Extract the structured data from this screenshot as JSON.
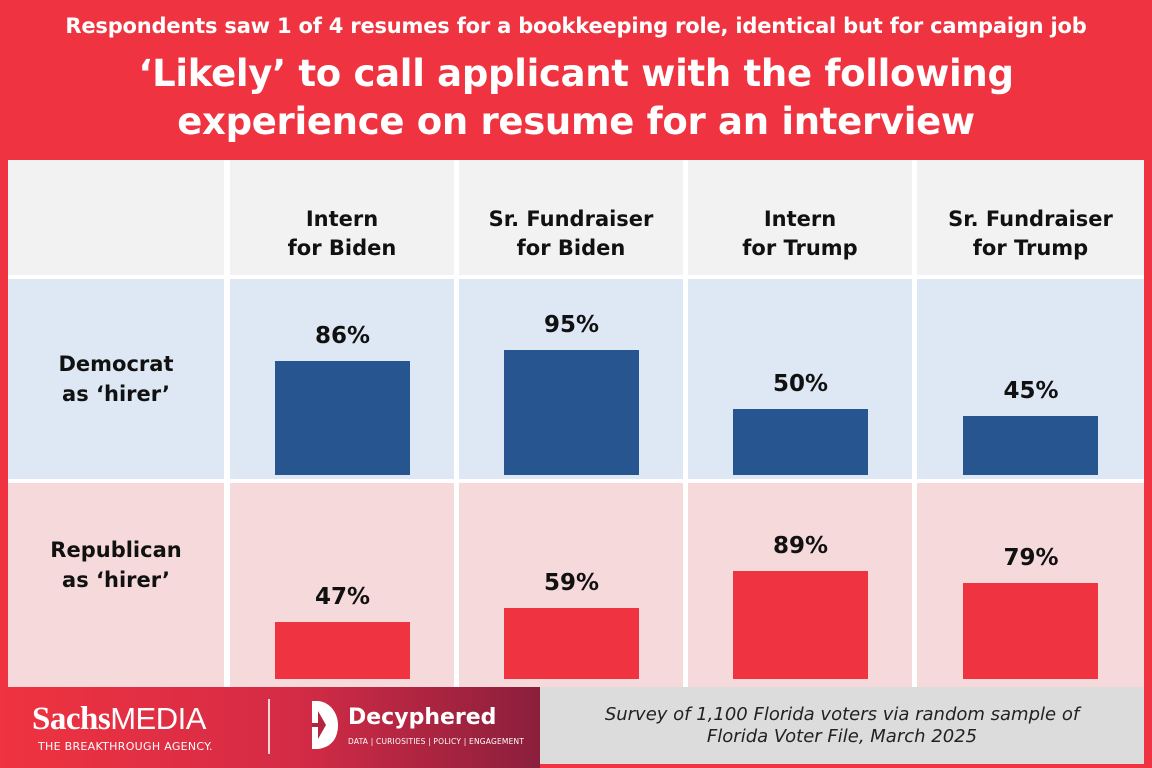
{
  "header": {
    "subtitle": "Respondents saw 1 of 4 resumes for a bookkeeping role, identical but for campaign job",
    "title_line1": "‘Likely’ to call applicant with the following",
    "title_line2": "experience on resume for an interview"
  },
  "chart_data": {
    "type": "bar",
    "title": "‘Likely’ to call applicant with the following experience on resume for an interview",
    "subtitle": "Respondents saw 1 of 4 resumes for a bookkeeping role, identical but for campaign job",
    "categories": [
      {
        "line1": "Intern",
        "line2": "for Biden"
      },
      {
        "line1": "Sr. Fundraiser",
        "line2": "for Biden"
      },
      {
        "line1": "Intern",
        "line2": "for Trump"
      },
      {
        "line1": "Sr. Fundraiser",
        "line2": "for Trump"
      }
    ],
    "series": [
      {
        "name_line1": "Democrat",
        "name_line2": "as ‘hirer’",
        "color": "#275590",
        "values": [
          86,
          95,
          50,
          45
        ],
        "labels": [
          "86%",
          "95%",
          "50%",
          "45%"
        ]
      },
      {
        "name_line1": "Republican",
        "name_line2": "as ‘hirer’",
        "color": "#ef3340",
        "values": [
          47,
          59,
          89,
          79
        ],
        "labels": [
          "47%",
          "59%",
          "89%",
          "79%"
        ]
      }
    ],
    "ylim": [
      0,
      100
    ],
    "unit": "%"
  },
  "footer": {
    "sachs_brand": "Sachs",
    "sachs_media": "MEDIA",
    "sachs_tagline": "THE BREAKTHROUGH AGENCY.",
    "decyphered_name": "Decyphered",
    "decyphered_tagline": "DATA | CURIOSITIES | POLICY | ENGAGEMENT",
    "source_line1": "Survey of 1,100 Florida voters via random sample of",
    "source_line2": "Florida Voter File, March 2025"
  },
  "colors": {
    "background": "#ef3340",
    "democrat": "#275590",
    "republican": "#ef3340",
    "democrat_row_bg": "#dde8f4",
    "republican_row_bg": "#f6d9db"
  }
}
